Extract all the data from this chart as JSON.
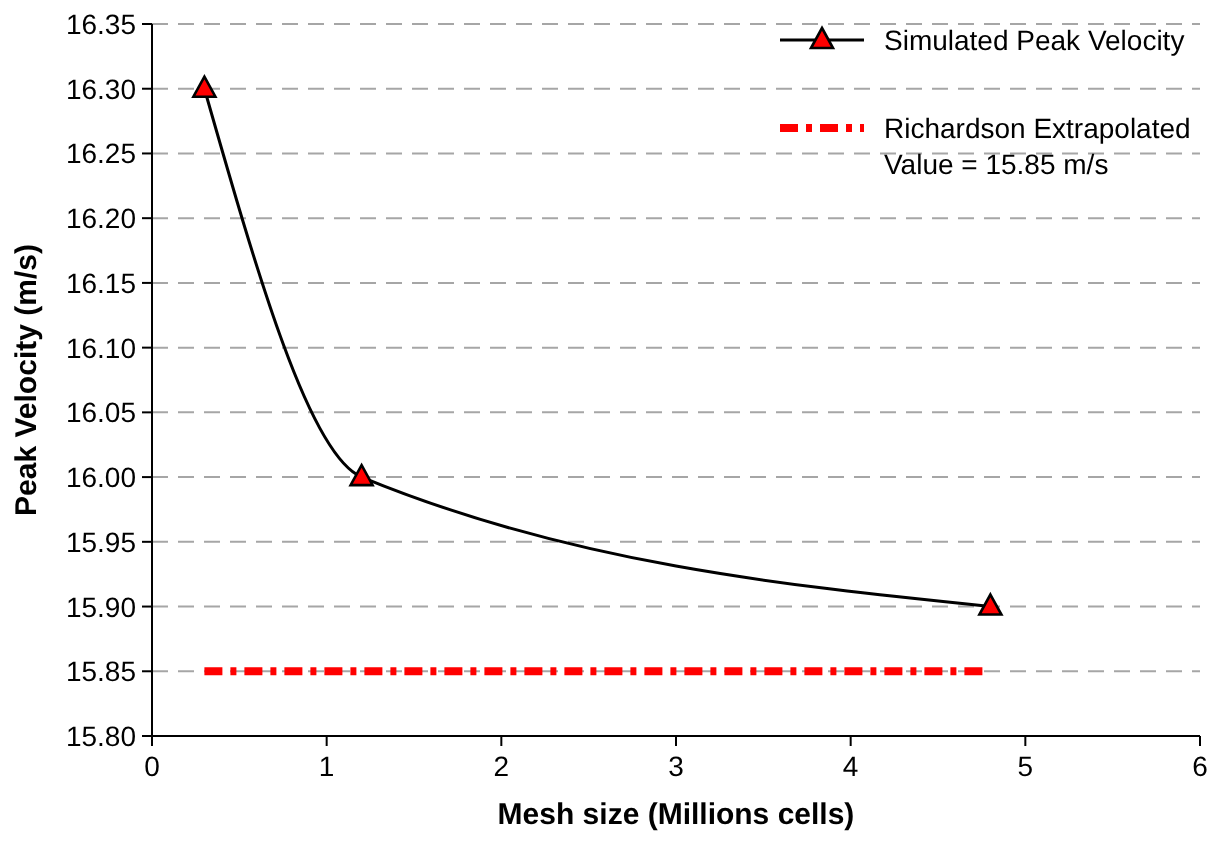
{
  "chart_data": {
    "type": "line",
    "xlabel": "Mesh size (Millions cells)",
    "ylabel": "Peak Velocity (m/s)",
    "xlim": [
      0,
      6
    ],
    "xticks": [
      0,
      1,
      2,
      3,
      4,
      5,
      6
    ],
    "ylim": [
      15.8,
      16.35
    ],
    "yticks": [
      {
        "value": 15.8,
        "label": "15.80"
      },
      {
        "value": 15.85,
        "label": "15.85"
      },
      {
        "value": 15.9,
        "label": "15.90"
      },
      {
        "value": 15.95,
        "label": "15.95"
      },
      {
        "value": 16,
        "label": "16.00"
      },
      {
        "value": 16.05,
        "label": "16.05"
      },
      {
        "value": 16.1,
        "label": "16.10"
      },
      {
        "value": 16.15,
        "label": "16.15"
      },
      {
        "value": 16.2,
        "label": "16.20"
      },
      {
        "value": 16.25,
        "label": "16.25"
      },
      {
        "value": 16.3,
        "label": "16.30"
      },
      {
        "value": 16.35,
        "label": "16.35"
      }
    ],
    "grid": "y",
    "legend": "top right",
    "series": [
      {
        "name": "Simulated Peak Velocity",
        "color": "#000000",
        "x": [
          0.3,
          1.2,
          4.8
        ],
        "values": [
          16.3,
          16.0,
          15.9
        ],
        "marker": "triangle",
        "line_style": "solid"
      },
      {
        "name": "Richardson Extrapolated Value = 15.85 m/s",
        "color": "#ff0000",
        "x": [
          0.3,
          4.8
        ],
        "values": [
          15.85,
          15.85
        ],
        "marker": "none",
        "line_style": "dashed"
      }
    ]
  }
}
